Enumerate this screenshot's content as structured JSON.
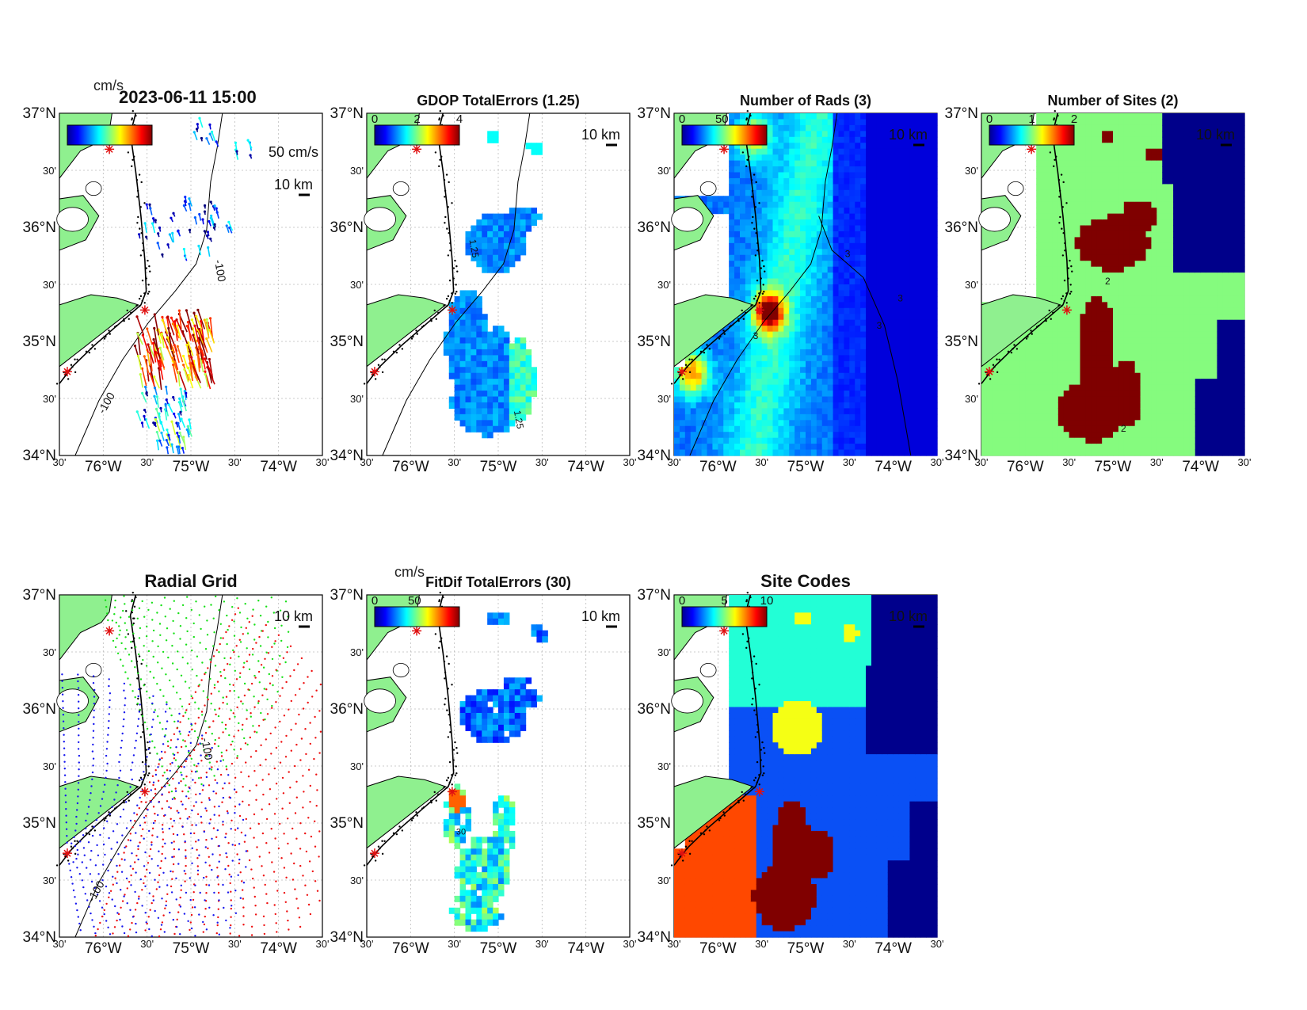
{
  "figure": {
    "top_label_units": "cm/s",
    "timestamp": "2023-06-11 15:00"
  },
  "axes": {
    "lat_ticks": [
      "37°N",
      "30'",
      "36°N",
      "30'",
      "35°N",
      "30'",
      "34°N"
    ],
    "lon_ticks": [
      "30'",
      "76°W",
      "30'",
      "75°W",
      "30'",
      "74°W",
      "30'"
    ],
    "lat_range": [
      34,
      37
    ],
    "lon_range": [
      -76.5,
      -73.5
    ]
  },
  "scale_bar_label": "10 km",
  "panels": [
    {
      "id": "totals",
      "title": "",
      "cbar_ticks": [],
      "overlap_label": "",
      "vector_scale_label": "50 cm/s",
      "contour_labels": [
        "-100",
        "-100"
      ]
    },
    {
      "id": "gdop",
      "title": "GDOP TotalErrors (1.25)",
      "cbar_ticks": [
        "0",
        "2",
        "4"
      ],
      "contour_labels": [
        "1.25",
        "1.25"
      ]
    },
    {
      "id": "rads",
      "title": "Number of Rads (3)",
      "cbar_ticks": [
        "0",
        "50"
      ],
      "contour_labels": [
        "3",
        "3",
        "3",
        "3"
      ]
    },
    {
      "id": "sites",
      "title": "Number of Sites (2)",
      "cbar_ticks": [
        "0",
        "1",
        "2"
      ],
      "contour_labels": [
        "2",
        "2"
      ]
    },
    {
      "id": "radgrid",
      "title": "Radial Grid",
      "contour_labels": [
        "-100",
        "-100"
      ]
    },
    {
      "id": "fitdif",
      "title": "FitDif TotalErrors (30)",
      "units_label": "cm/s",
      "cbar_ticks": [
        "0",
        "50"
      ],
      "contour_labels": [
        "30"
      ]
    },
    {
      "id": "codes",
      "title": "Site Codes",
      "cbar_ticks": [
        "0",
        "5",
        "10"
      ]
    }
  ],
  "colors": {
    "land": "#8ff08f",
    "site_marker": "#e01010",
    "radial_site_north": "#18e018",
    "radial_site_center": "#ee1010",
    "radial_site_south": "#1818ee",
    "sites_one": "#85fb7e",
    "sites_two": "#7f0000",
    "sites_zero": "#00008a",
    "code_cyan": "#22ffd6",
    "code_yellow": "#f5ff14",
    "code_blue": "#0a50f5",
    "code_navy": "#00008c",
    "code_orange": "#ff4800",
    "code_maroon": "#800000"
  }
}
